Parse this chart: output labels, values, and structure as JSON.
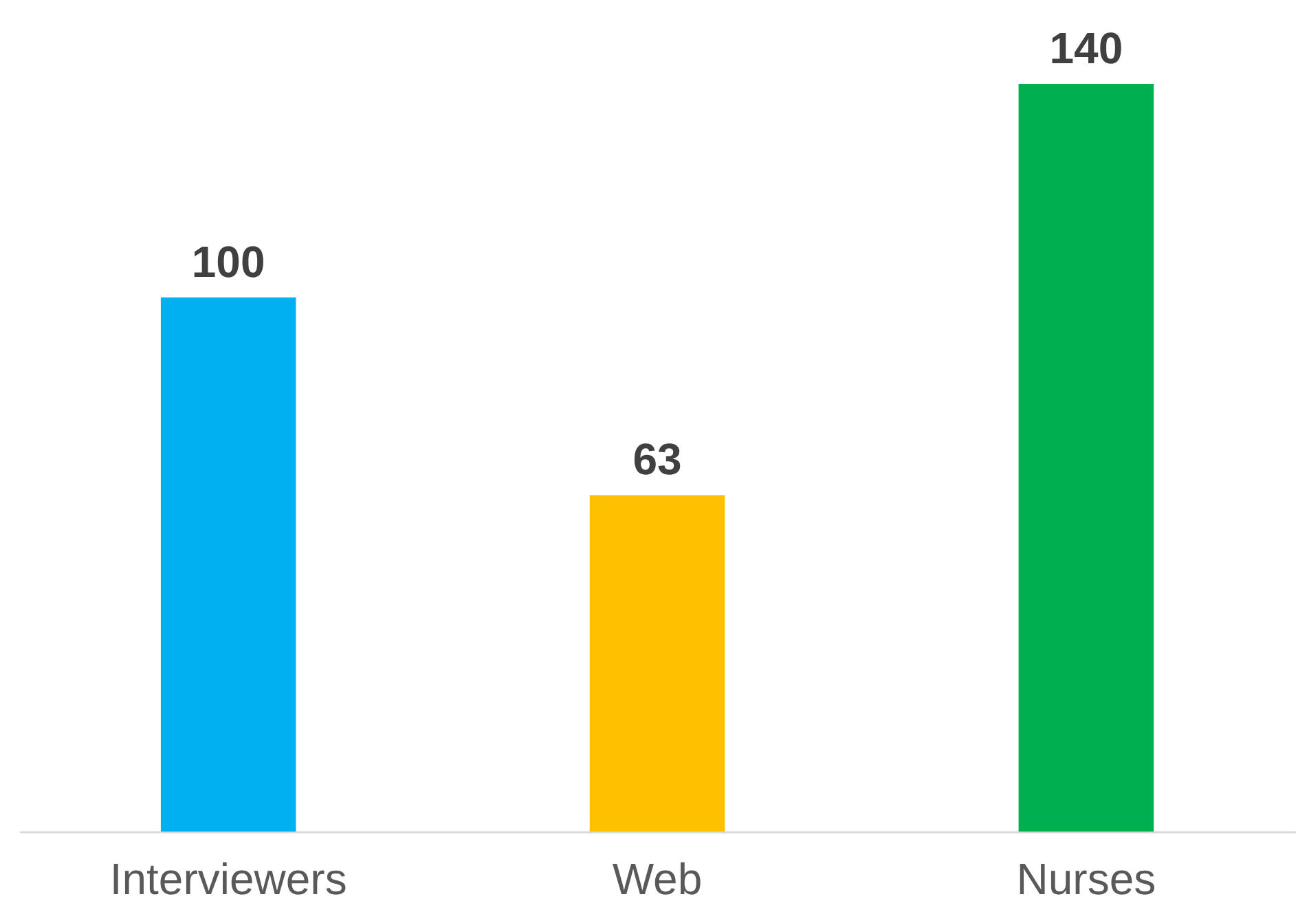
{
  "chart_data": {
    "type": "bar",
    "categories": [
      "Interviewers",
      "Web",
      "Nurses"
    ],
    "values": [
      100,
      63,
      140
    ],
    "colors": [
      "#00b0f0",
      "#ffc000",
      "#00b050"
    ],
    "data_labels": true,
    "tick_labels": "x"
  }
}
